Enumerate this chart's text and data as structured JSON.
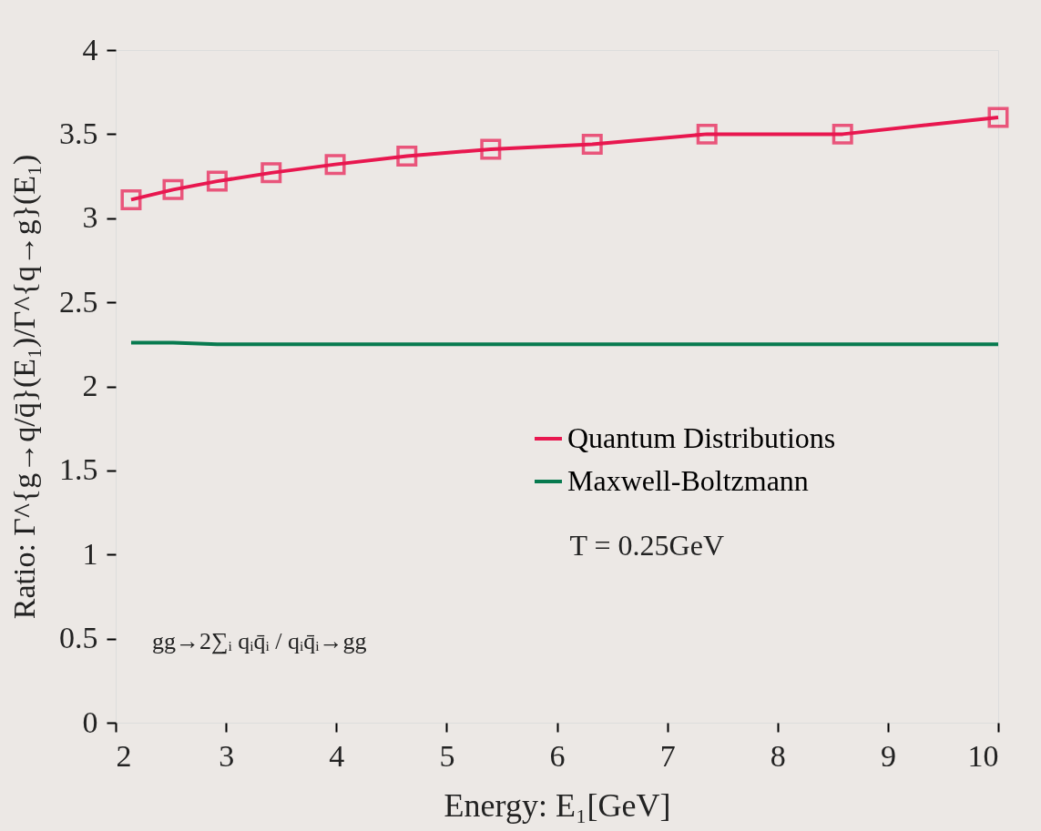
{
  "chart_data": {
    "type": "line",
    "xlabel": "Energy: E₁[GeV]",
    "ylabel": "Ratio: Γ^{g→q/q̄}(E₁)/Γ^{q→g}(E₁)",
    "x": [
      2.14,
      2.52,
      2.92,
      3.41,
      3.99,
      4.64,
      5.4,
      6.32,
      7.36,
      8.59,
      10.0
    ],
    "series": [
      {
        "name": "Quantum Distributions",
        "color": "#e8174f",
        "marker": "square",
        "values": [
          3.11,
          3.17,
          3.22,
          3.27,
          3.32,
          3.37,
          3.41,
          3.44,
          3.5,
          3.5,
          3.6
        ]
      },
      {
        "name": "Maxwell-Boltzmann",
        "color": "#077a4f",
        "marker": "none",
        "values": [
          2.26,
          2.26,
          2.25,
          2.25,
          2.25,
          2.25,
          2.25,
          2.25,
          2.25,
          2.25,
          2.25
        ]
      }
    ],
    "annotations": [
      "T = 0.25GeV",
      "gg→2∑ᵢ qᵢq̄ᵢ / qᵢq̄ᵢ→gg"
    ],
    "xlim": [
      2,
      10
    ],
    "xticks": [
      2,
      3,
      4,
      5,
      6,
      7,
      8,
      9,
      10
    ],
    "ylim": [
      0,
      4
    ],
    "yticks": [
      0,
      0.5,
      1,
      1.5,
      2,
      2.5,
      3,
      3.5,
      4
    ],
    "grid": false,
    "legend": "bottom right",
    "line_style": "solid"
  }
}
